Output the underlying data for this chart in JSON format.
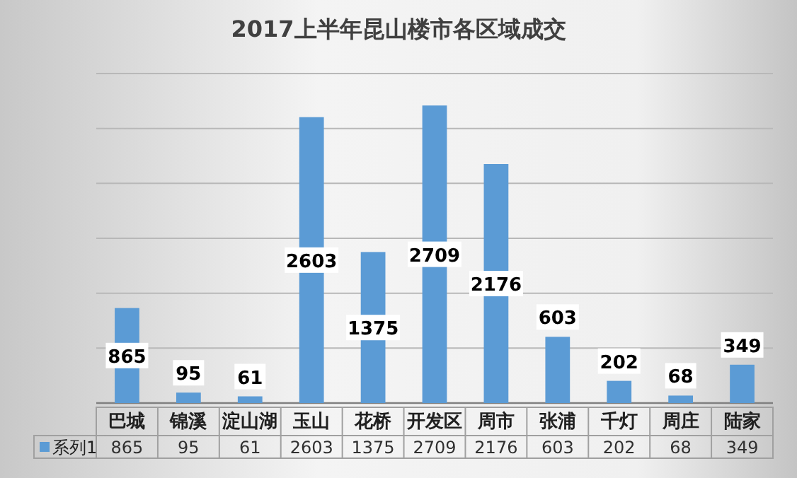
{
  "chart_data": {
    "type": "bar",
    "title": "2017上半年昆山楼市各区域成交",
    "categories": [
      "巴城",
      "锦溪",
      "淀山湖",
      "玉山",
      "花桥",
      "开发区",
      "周市",
      "张浦",
      "千灯",
      "周庄",
      "陆家"
    ],
    "series": [
      {
        "name": "系列1",
        "color": "#5b9bd5",
        "values": [
          865,
          95,
          61,
          2603,
          1375,
          2709,
          2176,
          603,
          202,
          68,
          349
        ]
      }
    ],
    "annotations": [
      "865",
      "95",
      "61",
      "2603",
      "1375",
      "2709",
      "2176",
      "603",
      "202",
      "68",
      "349"
    ],
    "ylim": [
      0,
      3000
    ],
    "yticks": [
      {
        "value": 0,
        "label": null
      },
      {
        "value": 500,
        "label": null
      },
      {
        "value": 1000,
        "label": null
      },
      {
        "value": 1500,
        "label": null
      },
      {
        "value": 2000,
        "label": null
      },
      {
        "value": 2500,
        "label": null
      },
      {
        "value": 3000,
        "label": null
      }
    ],
    "grid": "y",
    "data_labels": true,
    "legend": "bottom left"
  }
}
